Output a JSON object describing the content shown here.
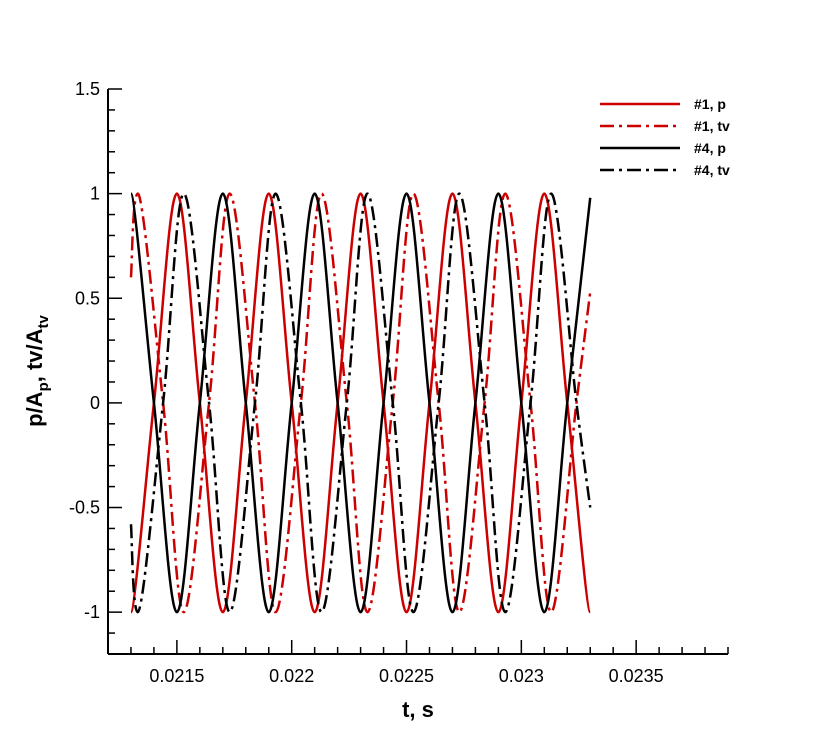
{
  "chart_data": {
    "type": "line",
    "title": "",
    "xlabel": "t, s",
    "ylabel_main": "p/A",
    "ylabel_sub1": "p",
    "ylabel_mid": ", tv/A",
    "ylabel_sub2": "tv",
    "xlim": [
      0.0212,
      0.0239
    ],
    "ylim": [
      -1.2,
      1.5
    ],
    "x_ticks": [
      {
        "value": 0.0215,
        "label": "0.0215"
      },
      {
        "value": 0.022,
        "label": "0.022"
      },
      {
        "value": 0.0225,
        "label": "0.0225"
      },
      {
        "value": 0.023,
        "label": "0.023"
      },
      {
        "value": 0.0235,
        "label": "0.0235"
      }
    ],
    "y_ticks": [
      {
        "value": -1,
        "label": "-1"
      },
      {
        "value": -0.5,
        "label": "-0.5"
      },
      {
        "value": 0,
        "label": "0"
      },
      {
        "value": 0.5,
        "label": "0.5"
      },
      {
        "value": 1,
        "label": "1"
      },
      {
        "value": 1.5,
        "label": "1.5"
      }
    ],
    "grid": false,
    "legend_position": "top-right",
    "series": [
      {
        "name": "#1, p",
        "color": "#cc0000",
        "style": "solid",
        "x": [
          0.0213,
          0.0214,
          0.0215,
          0.0216,
          0.0217,
          0.0218,
          0.0219,
          0.022,
          0.0221,
          0.0222,
          0.0223,
          0.0224,
          0.0225,
          0.0226,
          0.0227,
          0.0228,
          0.0229,
          0.023,
          0.0231,
          0.0232,
          0.0233
        ],
        "y": [
          -1,
          0,
          1,
          0,
          -1,
          0,
          1,
          0,
          -1,
          0,
          1,
          0,
          -1,
          0,
          1,
          0,
          -1,
          0,
          1,
          0,
          -1
        ]
      },
      {
        "name": "#1, tv",
        "color": "#cc0000",
        "style": "dashdot",
        "x": [
          0.0213,
          0.02133,
          0.02144,
          0.02153,
          0.02164,
          0.02173,
          0.02184,
          0.02193,
          0.02204,
          0.02213,
          0.02224,
          0.02233,
          0.02244,
          0.02253,
          0.02264,
          0.02273,
          0.02284,
          0.02293,
          0.02304,
          0.02313,
          0.02324,
          0.0233
        ],
        "y": [
          0.6,
          1,
          0,
          -1,
          0,
          1,
          0,
          -1,
          0,
          1,
          0,
          -1,
          0,
          1,
          0,
          -1,
          0,
          1,
          0,
          -1,
          0,
          0.53
        ]
      },
      {
        "name": "#4, p",
        "color": "#000000",
        "style": "solid",
        "x": [
          0.0213,
          0.0214,
          0.0215,
          0.0216,
          0.0217,
          0.0218,
          0.0219,
          0.022,
          0.0221,
          0.0222,
          0.0223,
          0.0224,
          0.0225,
          0.0226,
          0.0227,
          0.0228,
          0.0229,
          0.023,
          0.0231,
          0.0232,
          0.0233
        ],
        "y": [
          1,
          0,
          -1,
          0,
          1,
          0,
          -1,
          0,
          1,
          0,
          -1,
          0,
          1,
          0,
          -1,
          0,
          1,
          0,
          -1,
          0,
          0.98
        ]
      },
      {
        "name": "#4, tv",
        "color": "#000000",
        "style": "dashdot",
        "x": [
          0.0213,
          0.02133,
          0.02144,
          0.02153,
          0.02164,
          0.02173,
          0.02184,
          0.02193,
          0.02204,
          0.02213,
          0.02224,
          0.02233,
          0.02244,
          0.02253,
          0.02264,
          0.02273,
          0.02284,
          0.02293,
          0.02304,
          0.02313,
          0.02324,
          0.0233
        ],
        "y": [
          -0.58,
          -1,
          0,
          1,
          0,
          -1,
          0,
          1,
          0,
          -1,
          0,
          1,
          0,
          -1,
          0,
          1,
          0,
          -1,
          0,
          1,
          0,
          -0.5
        ]
      }
    ]
  }
}
